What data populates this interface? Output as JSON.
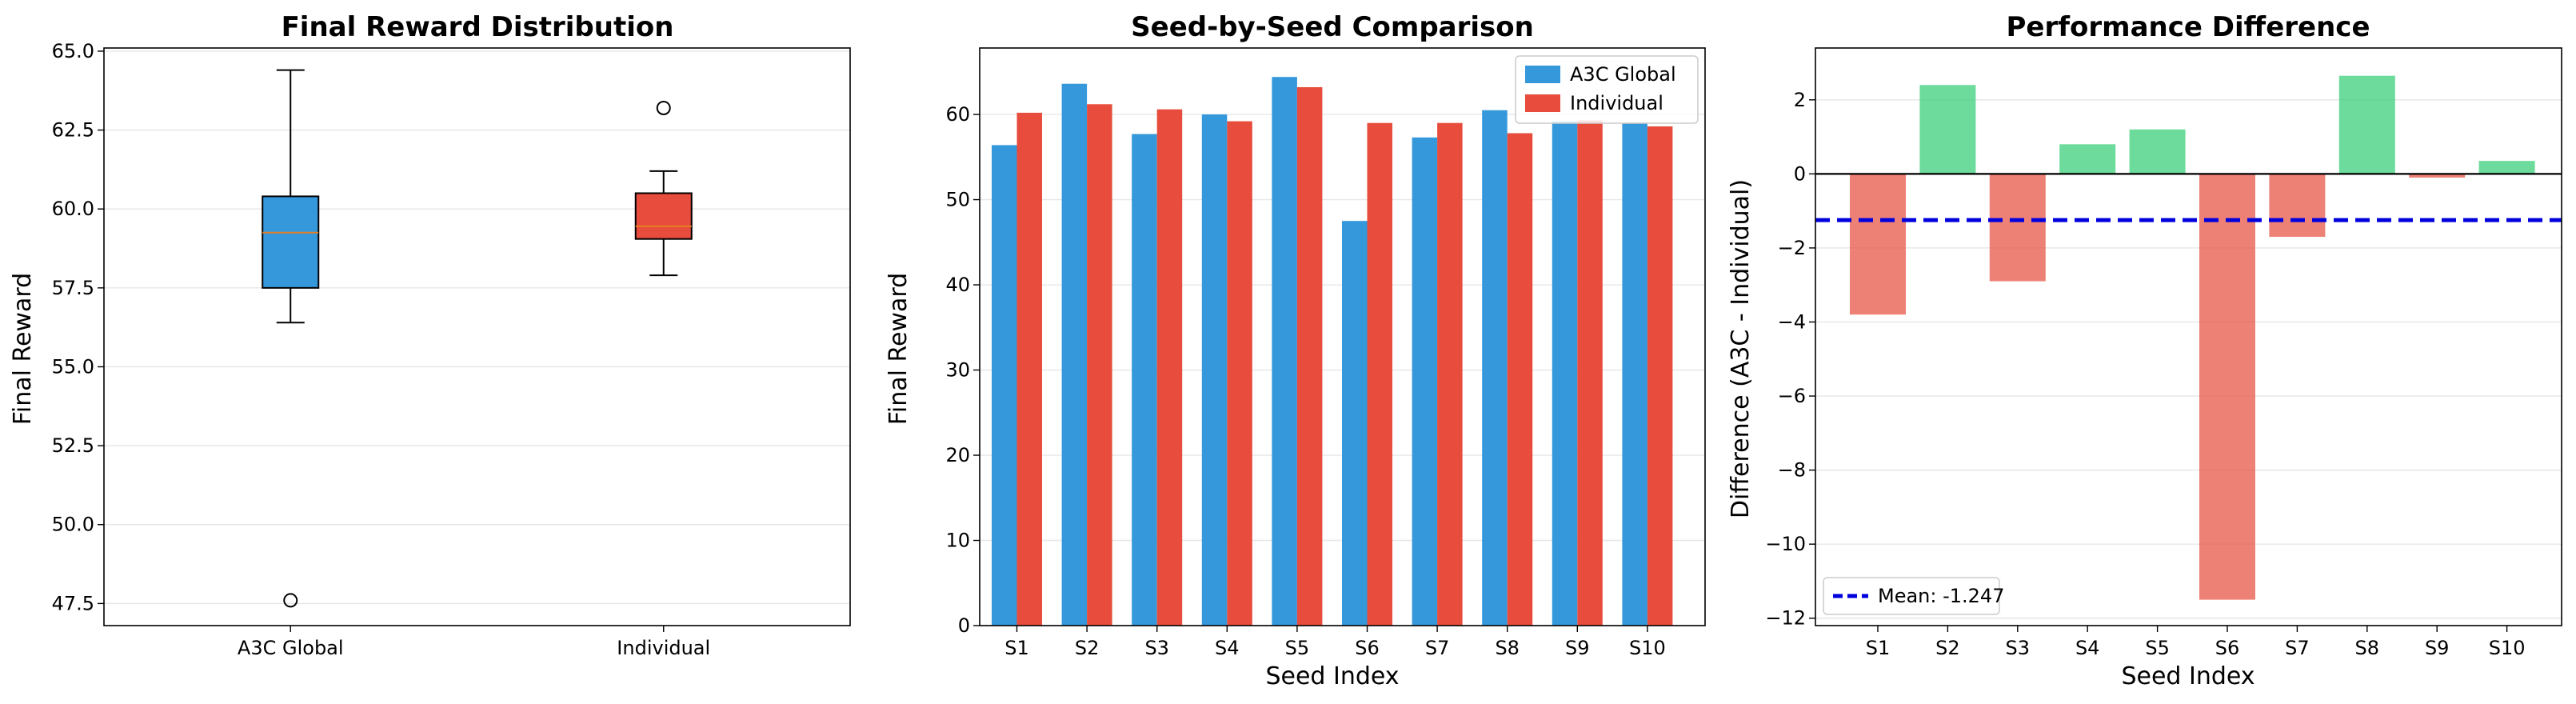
{
  "colors": {
    "a3c": "#3498db",
    "individual": "#e74c3c",
    "positive": "#2ecc71",
    "negative": "#e74c3c",
    "median": "#e67e22",
    "mean_line": "#0000dd",
    "grid": "#e6e6e6"
  },
  "chart_data": [
    {
      "type": "box",
      "title": "Final Reward Distribution",
      "xlabel": "",
      "ylabel": "Final Reward",
      "ylim": [
        46.8,
        65.1
      ],
      "yticks": [
        47.5,
        50.0,
        52.5,
        55.0,
        57.5,
        60.0,
        62.5,
        65.0
      ],
      "ytick_labels": [
        "47.5",
        "50.0",
        "52.5",
        "55.0",
        "57.5",
        "60.0",
        "62.5",
        "65.0"
      ],
      "grid": "y",
      "boxes": [
        {
          "name": "A3C Global",
          "color": "#3498db",
          "whisker_low": 56.4,
          "q1": 57.5,
          "median": 59.25,
          "q3": 60.4,
          "whisker_high": 64.4,
          "outliers": [
            47.6
          ]
        },
        {
          "name": "Individual",
          "color": "#e74c3c",
          "whisker_low": 57.9,
          "q1": 59.05,
          "median": 59.45,
          "q3": 60.5,
          "whisker_high": 61.2,
          "outliers": [
            63.2
          ]
        }
      ]
    },
    {
      "type": "bar",
      "title": "Seed-by-Seed Comparison",
      "xlabel": "Seed Index",
      "ylabel": "Final Reward",
      "ylim": [
        0,
        67.8
      ],
      "yticks": [
        0,
        10,
        20,
        30,
        40,
        50,
        60
      ],
      "ytick_labels": [
        "0",
        "10",
        "20",
        "30",
        "40",
        "50",
        "60"
      ],
      "grid": "y",
      "legend": "top-right",
      "categories": [
        "S1",
        "S2",
        "S3",
        "S4",
        "S5",
        "S6",
        "S7",
        "S8",
        "S9",
        "S10"
      ],
      "series": [
        {
          "name": "A3C Global",
          "color": "#3498db",
          "values": [
            56.4,
            63.6,
            57.7,
            60.0,
            64.4,
            47.5,
            57.3,
            60.5,
            59.2,
            59.0
          ]
        },
        {
          "name": "Individual",
          "color": "#e74c3c",
          "values": [
            60.2,
            61.2,
            60.6,
            59.2,
            63.2,
            59.0,
            59.0,
            57.8,
            59.3,
            58.6
          ]
        }
      ]
    },
    {
      "type": "bar",
      "title": "Performance Difference",
      "xlabel": "Seed Index",
      "ylabel": "Difference (A3C - Individual)",
      "ylim": [
        -12.2,
        3.4
      ],
      "yticks": [
        -12,
        -10,
        -8,
        -6,
        -4,
        -2,
        0,
        2
      ],
      "ytick_labels": [
        "−12",
        "−10",
        "−8",
        "−6",
        "−4",
        "−2",
        "0",
        "2"
      ],
      "grid": "y",
      "legend": "bottom-left",
      "categories": [
        "S1",
        "S2",
        "S3",
        "S4",
        "S5",
        "S6",
        "S7",
        "S8",
        "S9",
        "S10"
      ],
      "values": [
        -3.8,
        2.4,
        -2.9,
        0.8,
        1.2,
        -11.5,
        -1.7,
        2.65,
        -0.1,
        0.35
      ],
      "mean": -1.247,
      "mean_label": "Mean: -1.247"
    }
  ]
}
